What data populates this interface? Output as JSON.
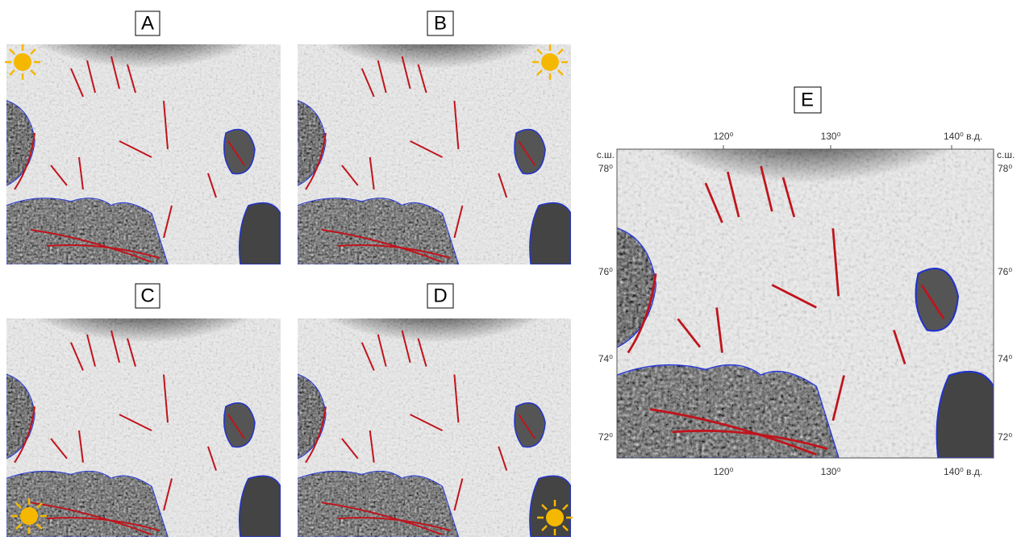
{
  "panels": [
    {
      "label": "A"
    },
    {
      "label": "B"
    },
    {
      "label": "C"
    },
    {
      "label": "D"
    }
  ],
  "map_e": {
    "label": "E",
    "top_labels": [
      "120⁰",
      "130⁰",
      "140⁰ в.д."
    ],
    "bottom_labels": [
      "120⁰",
      "130⁰",
      "140⁰ в.д."
    ],
    "left_labels": [
      "78⁰",
      "76⁰",
      "74⁰",
      "72⁰"
    ],
    "right_labels": [
      "78⁰",
      "76⁰",
      "74⁰",
      "72⁰"
    ],
    "lat_caption": "с.ш."
  }
}
